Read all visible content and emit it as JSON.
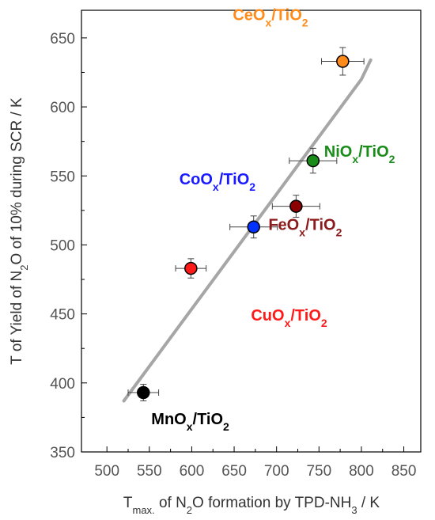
{
  "chart_data": {
    "type": "scatter",
    "xlabel": {
      "main": "T",
      "sub": "max.",
      "rest": " of  N",
      "sub2": "2",
      "tail": "O formation  by TPD-NH",
      "sub3": "3",
      "end": " / K"
    },
    "ylabel": {
      "main": "T of Yield of N",
      "sub": "2",
      "rest": "O of 10% during SCR / K"
    },
    "xlim": [
      470,
      870
    ],
    "ylim": [
      350,
      670
    ],
    "xticks": [
      500,
      550,
      600,
      650,
      700,
      750,
      800,
      850
    ],
    "yticks": [
      350,
      400,
      450,
      500,
      550,
      600,
      650
    ],
    "points": [
      {
        "name": "MnOx/TiO2",
        "base": "MnO",
        "sub": "x",
        "tail": "/TiO",
        "sub2": "2",
        "x": 543,
        "y": 393,
        "xerr": 18,
        "yerr": 6,
        "color": "#000000",
        "label_color": "#000000"
      },
      {
        "name": "CuOx/TiO2",
        "base": "CuO",
        "sub": "x",
        "tail": "/TiO",
        "sub2": "2",
        "x": 599,
        "y": 483,
        "xerr": 18,
        "yerr": 7,
        "color": "#ff1a1a",
        "label_color": "#ff1a1a"
      },
      {
        "name": "CoOx/TiO2",
        "base": "CoO",
        "sub": "x",
        "tail": "/TiO",
        "sub2": "2",
        "x": 673,
        "y": 513,
        "xerr": 28,
        "yerr": 8,
        "color": "#0033ff",
        "label_color": "#1a1aff"
      },
      {
        "name": "FeOx/TiO2",
        "base": "FeO",
        "sub": "x",
        "tail": "/TiO",
        "sub2": "2",
        "x": 723,
        "y": 528,
        "xerr": 28,
        "yerr": 8,
        "color": "#8b0000",
        "label_color": "#8b1a1a"
      },
      {
        "name": "NiOx/TiO2",
        "base": "NiO",
        "sub": "x",
        "tail": "/TiO",
        "sub2": "2",
        "x": 743,
        "y": 561,
        "xerr": 28,
        "yerr": 9,
        "color": "#1a8c1a",
        "label_color": "#1a8c1a"
      },
      {
        "name": "CeOx/TiO2",
        "base": "CeO",
        "sub": "x",
        "tail": "/TiO",
        "sub2": "2",
        "x": 778,
        "y": 633,
        "xerr": 25,
        "yerr": 10,
        "color": "#ff8c1a",
        "label_color": "#ff8c1a"
      }
    ],
    "trend": [
      [
        520,
        387
      ],
      [
        800,
        620
      ],
      [
        811,
        634
      ]
    ],
    "trend_color": "#a6a6a6",
    "grid": false,
    "legend": "none"
  }
}
